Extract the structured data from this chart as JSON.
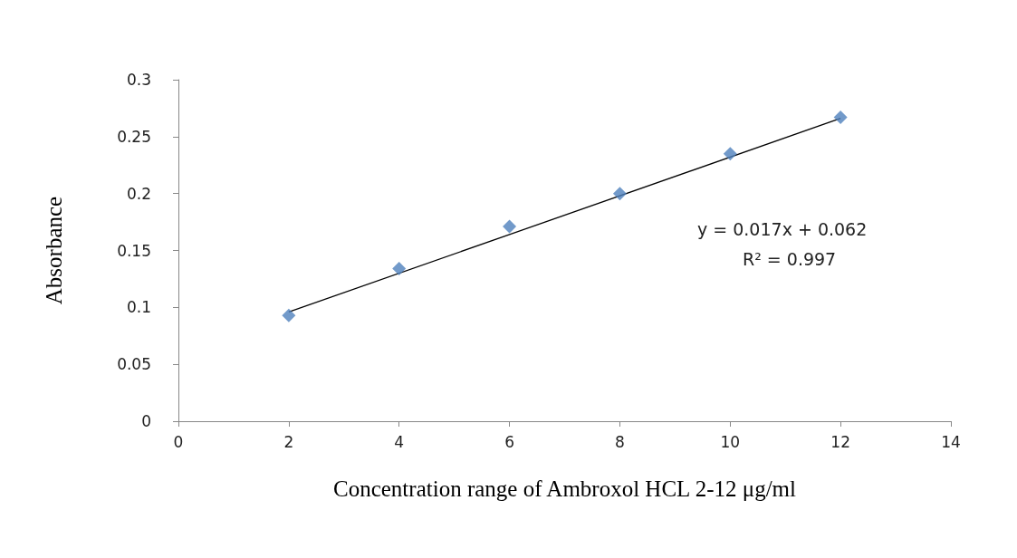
{
  "chart_data": {
    "type": "scatter",
    "xlabel": "Concentration range of Ambroxol HCL 2-12 μg/ml",
    "ylabel": "Absorbance",
    "x": [
      2,
      4,
      6,
      8,
      10,
      12
    ],
    "series": [
      {
        "color": "#4f81bd",
        "marker": "diamond",
        "values": [
          0.093,
          0.134,
          0.171,
          0.2,
          0.235,
          0.267
        ]
      },
      {
        "type": "line",
        "color": "#000000",
        "marker": "none",
        "x": [
          2,
          12
        ],
        "values": [
          0.096,
          0.266
        ]
      }
    ],
    "annotations": [
      "y = 0.017x + 0.062",
      "R² = 0.997"
    ],
    "xlim": [
      0,
      14
    ],
    "xticks": [
      0,
      2,
      4,
      6,
      8,
      10,
      12,
      14
    ],
    "ylim": [
      0,
      0.3
    ],
    "yticks": [
      0,
      0.05,
      0.1,
      0.15,
      0.2,
      0.25,
      0.3
    ],
    "grid": false
  }
}
